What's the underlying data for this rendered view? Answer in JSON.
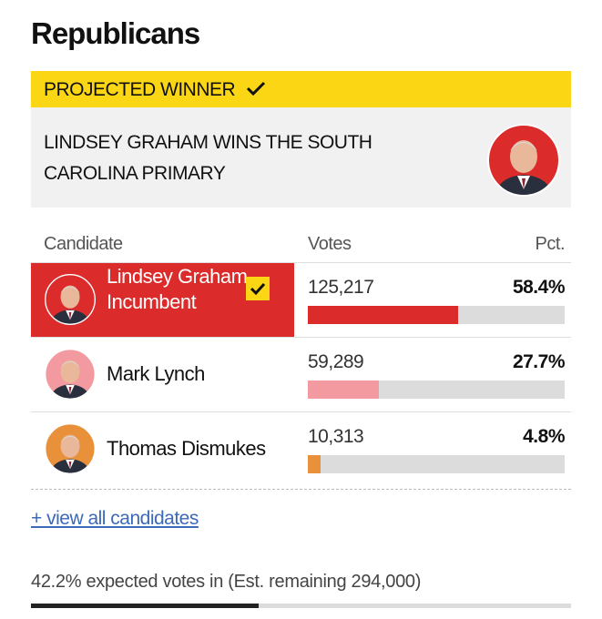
{
  "section_title": "Republicans",
  "banner": {
    "label": "PROJECTED WINNER",
    "headline": "LINDSEY GRAHAM WINS THE SOUTH CAROLINA PRIMARY"
  },
  "table": {
    "headers": [
      "Candidate",
      "Votes",
      "Pct."
    ],
    "rows": [
      {
        "name": "Lindsey Graham",
        "note": "Incumbent",
        "votes": "125,217",
        "pct": 58.4,
        "pct_label": "58.4%",
        "color": "#dc2b2b"
      },
      {
        "name": "Mark Lynch",
        "votes": "59,289",
        "pct": 27.7,
        "pct_label": "27.7%",
        "color": "#f29a9f"
      },
      {
        "name": "Thomas Dismukes",
        "votes": "10,313",
        "pct": 4.8,
        "pct_label": "4.8%",
        "color": "#e8913a"
      }
    ]
  },
  "link": "+ view all candidates",
  "footer": {
    "text": "42.2% expected votes in (Est. remaining 294,000)",
    "expected_pct": 42.2
  }
}
